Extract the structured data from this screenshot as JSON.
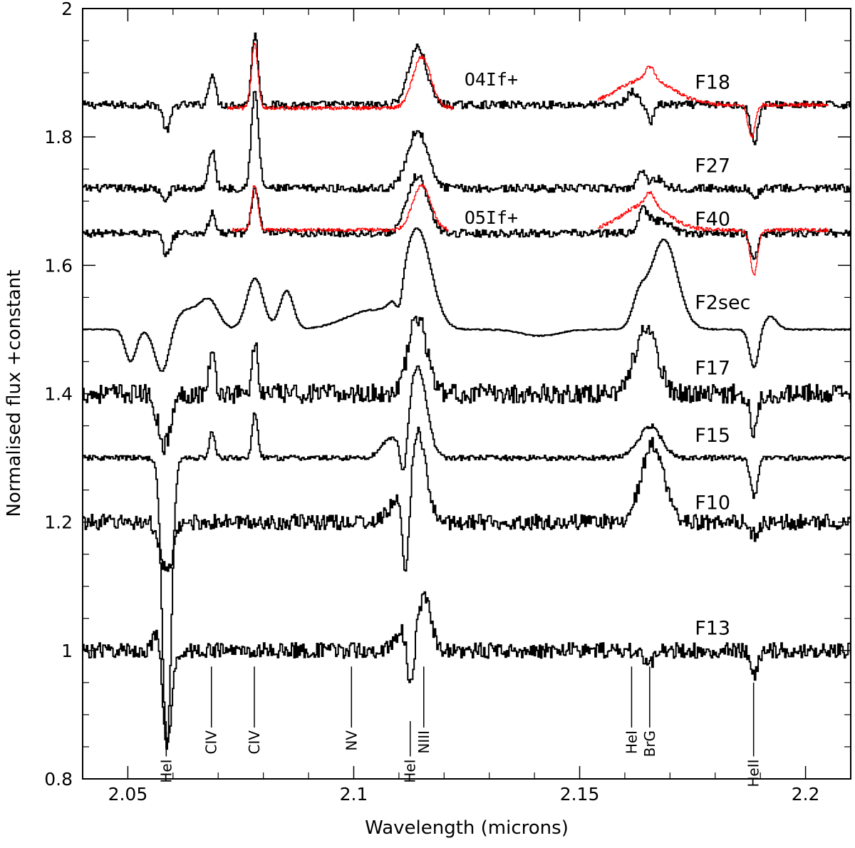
{
  "chart_data": {
    "type": "line",
    "title": "",
    "xlabel": "Wavelength (microns)",
    "ylabel": "Normalised flux +constant",
    "xlim": [
      2.04,
      2.21
    ],
    "ylim": [
      0.8,
      2.0
    ],
    "x_ticks": [
      2.05,
      2.1,
      2.15,
      2.2
    ],
    "x_tick_labels": [
      "2.05",
      "2.1",
      "2.15",
      "2.2"
    ],
    "y_ticks": [
      0.8,
      1.0,
      1.2,
      1.4,
      1.6,
      1.8,
      2.0
    ],
    "y_tick_labels": [
      "0.8",
      "1",
      "1.2",
      "1.4",
      "1.6",
      "1.8",
      "2"
    ],
    "series": [
      {
        "name": "F18",
        "offset": 1.85,
        "noise": 0.006,
        "color": "#000000",
        "features": [
          [
            2.0585,
            -0.04,
            0.0008
          ],
          [
            2.0685,
            0.05,
            0.0007
          ],
          [
            2.078,
            0.11,
            0.0007
          ],
          [
            2.114,
            0.09,
            0.002
          ],
          [
            2.1615,
            0.02,
            0.0012
          ],
          [
            2.1655,
            -0.03,
            0.0006
          ],
          [
            2.1885,
            -0.06,
            0.0008
          ]
        ]
      },
      {
        "name": "F27",
        "offset": 1.72,
        "noise": 0.006,
        "color": "#000000",
        "features": [
          [
            2.058,
            -0.02,
            0.0008
          ],
          [
            2.0685,
            0.06,
            0.0007
          ],
          [
            2.078,
            0.15,
            0.0008
          ],
          [
            2.114,
            0.09,
            0.0022
          ],
          [
            2.1635,
            0.03,
            0.0008
          ],
          [
            2.167,
            0.015,
            0.0015
          ],
          [
            2.1885,
            -0.015,
            0.0008
          ]
        ]
      },
      {
        "name": "F40",
        "offset": 1.65,
        "noise": 0.006,
        "color": "#000000",
        "features": [
          [
            2.0585,
            -0.035,
            0.0008
          ],
          [
            2.0685,
            0.03,
            0.0007
          ],
          [
            2.078,
            0.07,
            0.0008
          ],
          [
            2.114,
            0.09,
            0.0022
          ],
          [
            2.164,
            0.035,
            0.0012
          ],
          [
            2.168,
            0.02,
            0.002
          ],
          [
            2.1885,
            -0.04,
            0.0008
          ]
        ]
      },
      {
        "name": "F2sec",
        "offset": 1.5,
        "noise": 0.001,
        "color": "#000000",
        "features": [
          [
            2.0505,
            -0.05,
            0.0012
          ],
          [
            2.0575,
            -0.07,
            0.0016
          ],
          [
            2.063,
            0.03,
            0.003
          ],
          [
            2.068,
            0.04,
            0.002
          ],
          [
            2.078,
            0.08,
            0.0018
          ],
          [
            2.085,
            0.06,
            0.0015
          ],
          [
            2.104,
            0.03,
            0.006
          ],
          [
            2.11,
            -0.04,
            0.0008
          ],
          [
            2.114,
            0.15,
            0.003
          ],
          [
            2.141,
            -0.01,
            0.004
          ],
          [
            2.163,
            0.04,
            0.0015
          ],
          [
            2.1685,
            0.14,
            0.003
          ],
          [
            2.1885,
            -0.06,
            0.001
          ],
          [
            2.192,
            0.02,
            0.0015
          ]
        ]
      },
      {
        "name": "F17",
        "offset": 1.4,
        "noise": 0.015,
        "color": "#000000",
        "features": [
          [
            2.058,
            -0.08,
            0.0014
          ],
          [
            2.0685,
            0.06,
            0.0007
          ],
          [
            2.078,
            0.08,
            0.0006
          ],
          [
            2.114,
            0.12,
            0.002
          ],
          [
            2.1645,
            0.1,
            0.0025
          ],
          [
            2.1885,
            -0.06,
            0.0008
          ]
        ]
      },
      {
        "name": "F15",
        "offset": 1.3,
        "noise": 0.004,
        "color": "#000000",
        "features": [
          [
            2.0585,
            -0.45,
            0.001
          ],
          [
            2.0685,
            0.04,
            0.0006
          ],
          [
            2.078,
            0.07,
            0.0006
          ],
          [
            2.108,
            0.03,
            0.002
          ],
          [
            2.111,
            -0.07,
            0.0008
          ],
          [
            2.114,
            0.14,
            0.002
          ],
          [
            2.1655,
            0.05,
            0.0025
          ],
          [
            2.1885,
            -0.06,
            0.0008
          ]
        ]
      },
      {
        "name": "F10",
        "offset": 1.2,
        "noise": 0.012,
        "color": "#000000",
        "features": [
          [
            2.0585,
            -0.08,
            0.0014
          ],
          [
            2.1095,
            0.03,
            0.002
          ],
          [
            2.1115,
            -0.14,
            0.0008
          ],
          [
            2.114,
            0.14,
            0.0018
          ],
          [
            2.166,
            0.12,
            0.0025
          ],
          [
            2.1885,
            -0.02,
            0.0008
          ]
        ]
      },
      {
        "name": "F13",
        "offset": 1.0,
        "noise": 0.012,
        "color": "#000000",
        "features": [
          [
            2.057,
            0.04,
            0.0012
          ],
          [
            2.0585,
            -0.17,
            0.001
          ],
          [
            2.1105,
            0.03,
            0.0015
          ],
          [
            2.1125,
            -0.08,
            0.0007
          ],
          [
            2.1155,
            0.08,
            0.0015
          ],
          [
            2.165,
            -0.02,
            0.0012
          ],
          [
            2.1885,
            -0.04,
            0.0008
          ]
        ]
      }
    ],
    "comparison_series": [
      {
        "name": "O4If+",
        "offset": 1.845,
        "x_range": [
          2.072,
          2.122
        ],
        "color": "#ff0000",
        "features": [
          [
            2.078,
            0.1,
            0.0007
          ],
          [
            2.115,
            0.08,
            0.002
          ]
        ]
      },
      {
        "name": "O4If+",
        "offset": 1.85,
        "x_range": [
          2.154,
          2.205
        ],
        "color": "#ff0000",
        "features": [
          [
            2.1645,
            0.04,
            0.006
          ],
          [
            2.1655,
            0.02,
            0.001
          ],
          [
            2.188,
            -0.05,
            0.0008
          ]
        ]
      },
      {
        "name": "O5If+",
        "offset": 1.655,
        "x_range": [
          2.073,
          2.121
        ],
        "color": "#ff0000",
        "features": [
          [
            2.078,
            0.07,
            0.0007
          ],
          [
            2.115,
            0.07,
            0.002
          ]
        ]
      },
      {
        "name": "O5If+",
        "offset": 1.655,
        "x_range": [
          2.154,
          2.205
        ],
        "color": "#ff0000",
        "features": [
          [
            2.1645,
            0.04,
            0.005
          ],
          [
            2.1655,
            0.02,
            0.001
          ],
          [
            2.1885,
            -0.07,
            0.0008
          ]
        ]
      }
    ],
    "series_labels": [
      {
        "text": "F18",
        "x": 2.1755,
        "y": 1.875
      },
      {
        "text": "F27",
        "x": 2.1755,
        "y": 1.745
      },
      {
        "text": "F40",
        "x": 2.1755,
        "y": 1.662
      },
      {
        "text": "F2sec",
        "x": 2.1755,
        "y": 1.532
      },
      {
        "text": "F17",
        "x": 2.1755,
        "y": 1.43
      },
      {
        "text": "F15",
        "x": 2.1755,
        "y": 1.325
      },
      {
        "text": "F10",
        "x": 2.1755,
        "y": 1.22
      },
      {
        "text": "F13",
        "x": 2.1755,
        "y": 1.025
      }
    ],
    "type_labels": [
      {
        "text": "O4If+",
        "x": 2.1245,
        "y": 1.88
      },
      {
        "text": "O5If+",
        "x": 2.1245,
        "y": 1.665
      }
    ],
    "line_ids": [
      {
        "label": "HeI",
        "x": 2.0585,
        "y_top": 0.89,
        "y_bottom": 0.835
      },
      {
        "label": "CIV",
        "x": 2.0685,
        "y_top": 0.975,
        "y_bottom": 0.88
      },
      {
        "label": "CIV",
        "x": 2.078,
        "y_top": 0.975,
        "y_bottom": 0.88
      },
      {
        "label": "NV",
        "x": 2.0995,
        "y_top": 0.975,
        "y_bottom": 0.88
      },
      {
        "label": "HeI",
        "x": 2.1125,
        "y_top": 0.89,
        "y_bottom": 0.835
      },
      {
        "label": "NIII",
        "x": 2.1155,
        "y_top": 0.975,
        "y_bottom": 0.88
      },
      {
        "label": "HeI",
        "x": 2.1615,
        "y_top": 0.975,
        "y_bottom": 0.88
      },
      {
        "label": "BrG",
        "x": 2.1655,
        "y_top": 0.975,
        "y_bottom": 0.88
      },
      {
        "label": "HeII",
        "x": 2.1885,
        "y_top": 0.95,
        "y_bottom": 0.835
      }
    ]
  }
}
